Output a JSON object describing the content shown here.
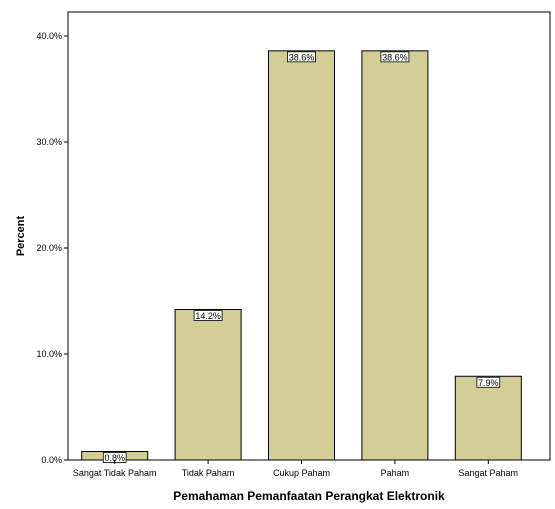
{
  "chart_data": {
    "type": "bar",
    "categories": [
      "Sangat Tidak Paham",
      "Tidak Paham",
      "Cukup Paham",
      "Paham",
      "Sangat Paham"
    ],
    "values": [
      0.8,
      14.2,
      38.6,
      38.6,
      7.9
    ],
    "data_labels": [
      "0.8%",
      "14.2%",
      "38.6%",
      "38.6%",
      "7.9%"
    ],
    "xlabel": "Pemahaman Pemanfaatan Perangkat Elektronik",
    "ylabel": "Percent",
    "yticks": [
      0,
      10,
      20,
      30,
      40
    ],
    "ytick_labels": [
      "0.0%",
      "10.0%",
      "20.0%",
      "30.0%",
      "40.0%"
    ],
    "ylim": [
      0,
      40
    ],
    "grid": false,
    "legend": "none"
  },
  "colors": {
    "bar_fill": "#d3ce98",
    "bar_stroke": "#000000",
    "background": "#ffffff"
  }
}
